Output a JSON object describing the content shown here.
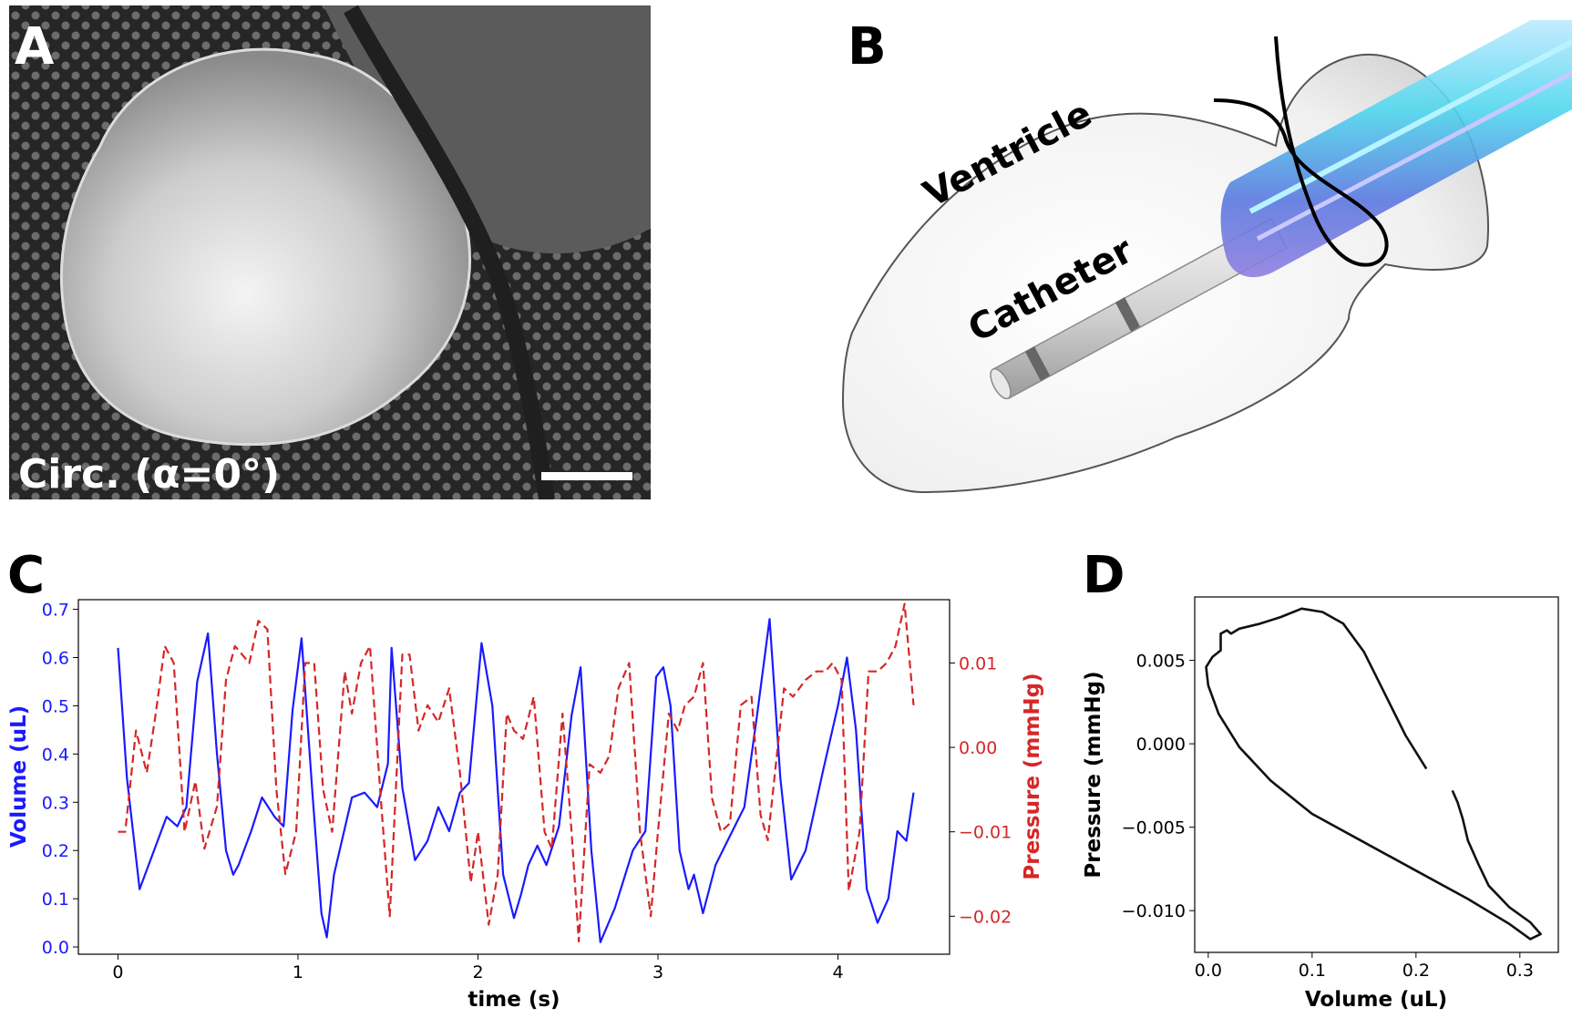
{
  "panels": {
    "A": {
      "letter": "A",
      "caption": "Circ. (α=0°)"
    },
    "B": {
      "letter": "B",
      "labels": {
        "ventricle": "Ventricle",
        "catheter": "Catheter"
      }
    },
    "C": {
      "letter": "C"
    },
    "D": {
      "letter": "D"
    }
  },
  "colors": {
    "volume": "#1a1aff",
    "pressure": "#d62728",
    "loop": "#111111",
    "photo_bg": "#2f2f2f"
  },
  "chart_data": [
    {
      "panel": "C",
      "type": "line",
      "xlabel": "time (s)",
      "ylabel": "Volume (uL)",
      "y2label": "Pressure (mmHg)",
      "xlim": [
        -0.22,
        4.62
      ],
      "ylim": [
        -0.015,
        0.72
      ],
      "y2lim": [
        -0.0245,
        0.0175
      ],
      "xticks": [
        0,
        1,
        2,
        3,
        4
      ],
      "yticks": [
        0.0,
        0.1,
        0.2,
        0.3,
        0.4,
        0.5,
        0.6,
        0.7
      ],
      "y2ticks": [
        0.01,
        0.0,
        -0.01,
        -0.02
      ],
      "ytick_labels": [
        "0.0",
        "0.1",
        "0.2",
        "0.3",
        "0.4",
        "0.5",
        "0.6",
        "0.7"
      ],
      "y2tick_labels": [
        "0.01",
        "0.00",
        "−0.01",
        "−0.02"
      ],
      "xtick_labels": [
        "0",
        "1",
        "2",
        "3",
        "4"
      ],
      "series": [
        {
          "axis": "left",
          "style": "solid",
          "x": [
            0.0,
            0.05,
            0.12,
            0.2,
            0.27,
            0.33,
            0.38,
            0.44,
            0.5,
            0.55,
            0.6,
            0.64,
            0.67,
            0.7,
            0.74,
            0.8,
            0.87,
            0.92,
            0.97,
            1.02,
            1.08,
            1.13,
            1.16,
            1.2,
            1.3,
            1.37,
            1.44,
            1.5,
            1.52,
            1.58,
            1.65,
            1.72,
            1.78,
            1.84,
            1.9,
            1.95,
            2.02,
            2.08,
            2.14,
            2.2,
            2.24,
            2.28,
            2.33,
            2.38,
            2.45,
            2.52,
            2.57,
            2.63,
            2.68,
            2.76,
            2.86,
            2.93,
            2.99,
            3.03,
            3.07,
            3.12,
            3.17,
            3.2,
            3.25,
            3.32,
            3.4,
            3.48,
            3.55,
            3.62,
            3.68,
            3.74,
            3.82,
            3.92,
            4.0,
            4.05,
            4.1,
            4.16,
            4.22,
            4.28,
            4.33,
            4.38,
            4.42
          ],
          "y": [
            0.62,
            0.35,
            0.12,
            0.2,
            0.27,
            0.25,
            0.29,
            0.55,
            0.65,
            0.4,
            0.2,
            0.15,
            0.17,
            0.2,
            0.24,
            0.31,
            0.27,
            0.25,
            0.49,
            0.64,
            0.32,
            0.07,
            0.02,
            0.15,
            0.31,
            0.32,
            0.29,
            0.38,
            0.62,
            0.33,
            0.18,
            0.22,
            0.29,
            0.24,
            0.32,
            0.34,
            0.63,
            0.5,
            0.15,
            0.06,
            0.11,
            0.17,
            0.21,
            0.17,
            0.25,
            0.48,
            0.58,
            0.2,
            0.01,
            0.08,
            0.2,
            0.24,
            0.56,
            0.58,
            0.5,
            0.2,
            0.12,
            0.15,
            0.07,
            0.17,
            0.23,
            0.29,
            0.48,
            0.68,
            0.35,
            0.14,
            0.2,
            0.37,
            0.5,
            0.6,
            0.45,
            0.12,
            0.05,
            0.1,
            0.24,
            0.22,
            0.32
          ]
        },
        {
          "axis": "right",
          "style": "dashed",
          "x": [
            0.0,
            0.04,
            0.1,
            0.16,
            0.21,
            0.26,
            0.31,
            0.37,
            0.43,
            0.48,
            0.55,
            0.6,
            0.65,
            0.69,
            0.73,
            0.78,
            0.83,
            0.88,
            0.93,
            0.99,
            1.04,
            1.09,
            1.14,
            1.19,
            1.26,
            1.3,
            1.35,
            1.4,
            1.46,
            1.51,
            1.58,
            1.62,
            1.67,
            1.72,
            1.78,
            1.84,
            1.9,
            1.96,
            2.0,
            2.06,
            2.11,
            2.16,
            2.2,
            2.25,
            2.31,
            2.37,
            2.41,
            2.47,
            2.52,
            2.56,
            2.62,
            2.68,
            2.73,
            2.78,
            2.84,
            2.9,
            2.96,
            3.0,
            3.06,
            3.11,
            3.15,
            3.2,
            3.25,
            3.3,
            3.35,
            3.4,
            3.46,
            3.52,
            3.57,
            3.61,
            3.66,
            3.7,
            3.75,
            3.82,
            3.88,
            3.93,
            3.97,
            4.02,
            4.06,
            4.12,
            4.17,
            4.22,
            4.27,
            4.32,
            4.37,
            4.42
          ],
          "y": [
            -0.01,
            -0.01,
            0.002,
            -0.003,
            0.004,
            0.012,
            0.01,
            -0.01,
            -0.004,
            -0.012,
            -0.007,
            0.008,
            0.012,
            0.011,
            0.01,
            0.015,
            0.014,
            -0.005,
            -0.015,
            -0.01,
            0.01,
            0.01,
            -0.005,
            -0.01,
            0.009,
            0.004,
            0.01,
            0.012,
            -0.006,
            -0.02,
            0.011,
            0.011,
            0.002,
            0.005,
            0.003,
            0.007,
            -0.003,
            -0.016,
            -0.01,
            -0.021,
            -0.015,
            0.004,
            0.002,
            0.001,
            0.006,
            -0.01,
            -0.012,
            0.004,
            -0.01,
            -0.023,
            -0.002,
            -0.003,
            -0.001,
            0.007,
            0.01,
            -0.01,
            -0.02,
            -0.01,
            0.004,
            0.002,
            0.005,
            0.006,
            0.01,
            -0.006,
            -0.01,
            -0.009,
            0.005,
            0.006,
            -0.008,
            -0.011,
            -0.001,
            0.007,
            0.006,
            0.008,
            0.009,
            0.009,
            0.01,
            0.008,
            -0.017,
            -0.01,
            0.009,
            0.009,
            0.01,
            0.012,
            0.017,
            0.005
          ]
        }
      ]
    },
    {
      "panel": "D",
      "type": "line",
      "xlabel": "Volume (uL)",
      "ylabel": "Pressure (mmHg)",
      "xlim": [
        -0.013,
        0.337
      ],
      "ylim": [
        -0.0125,
        0.0088
      ],
      "xticks": [
        0.0,
        0.1,
        0.2,
        0.3
      ],
      "xtick_labels": [
        "0.0",
        "0.1",
        "0.2",
        "0.3"
      ],
      "yticks": [
        0.005,
        0.0,
        -0.005,
        -0.01
      ],
      "ytick_labels": [
        "0.005",
        "0.000",
        "−0.005",
        "−0.010"
      ],
      "series": [
        {
          "x": [
            0.21,
            0.19,
            0.17,
            0.15,
            0.13,
            0.11,
            0.09,
            0.07,
            0.05,
            0.03,
            0.022,
            0.018,
            0.012,
            0.012,
            0.004,
            -0.002,
            0.0,
            0.01,
            0.03,
            0.06,
            0.1,
            0.15,
            0.2,
            0.25,
            0.29,
            0.31,
            0.32,
            0.31,
            0.29,
            0.27,
            0.26,
            0.25,
            0.245,
            0.24,
            0.235
          ],
          "y": [
            -0.0015,
            0.0005,
            0.003,
            0.0055,
            0.0072,
            0.0079,
            0.0081,
            0.0076,
            0.0072,
            0.0069,
            0.0066,
            0.0068,
            0.0066,
            0.0056,
            0.0052,
            0.0046,
            0.0035,
            0.0018,
            -0.0002,
            -0.0022,
            -0.0042,
            -0.0059,
            -0.0076,
            -0.0093,
            -0.0108,
            -0.0117,
            -0.0114,
            -0.0107,
            -0.0098,
            -0.0085,
            -0.0072,
            -0.0058,
            -0.0045,
            -0.0035,
            -0.0028
          ]
        }
      ]
    }
  ]
}
